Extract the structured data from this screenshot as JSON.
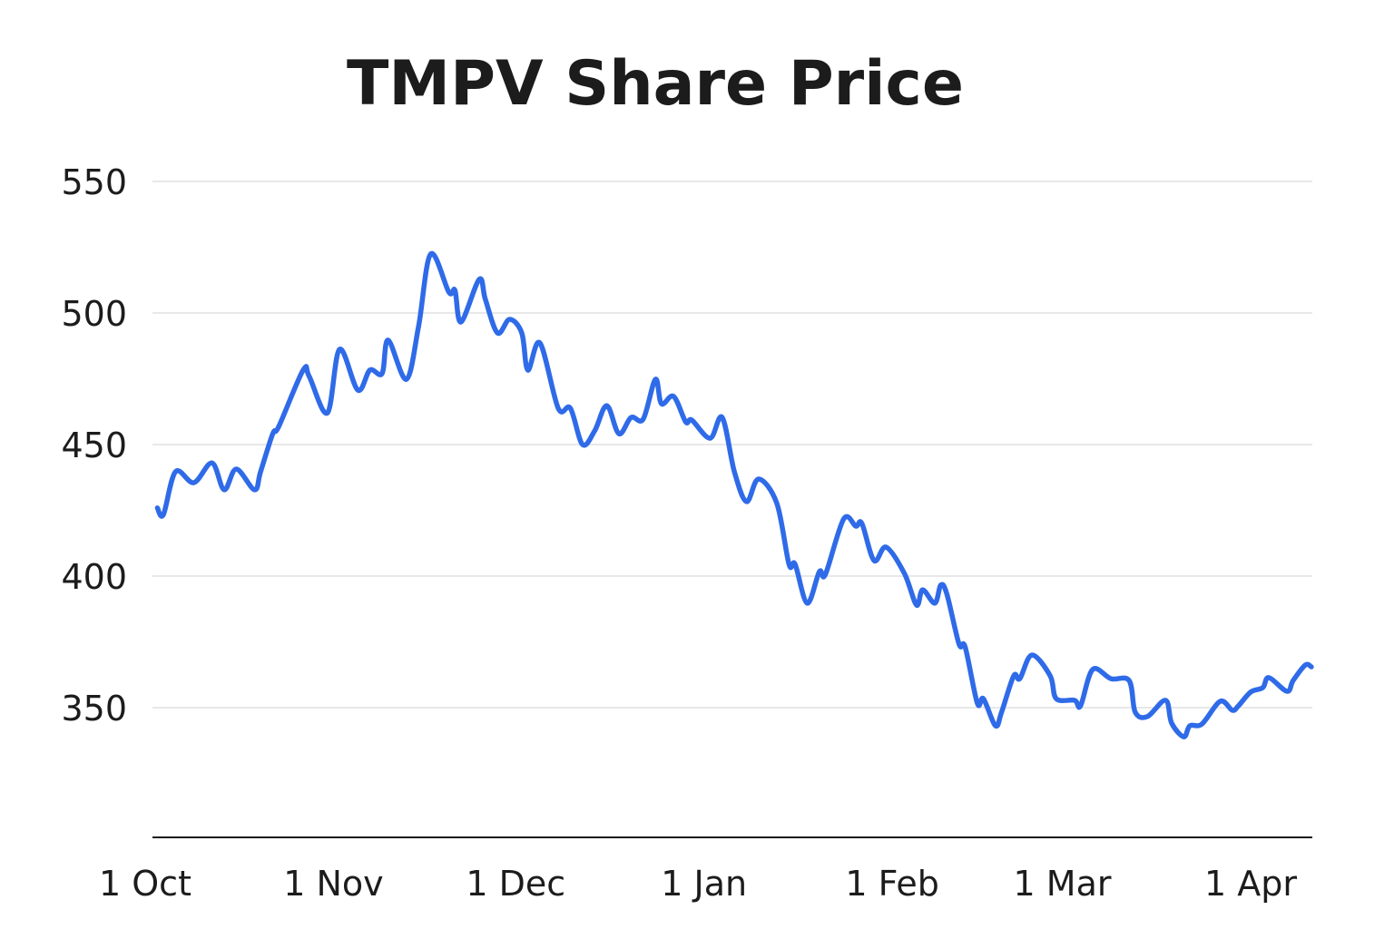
{
  "chart_data": {
    "type": "line",
    "title": "TMPV Share Price",
    "xlabel": "",
    "ylabel": "",
    "ylim": [
      300,
      550
    ],
    "yticks": [
      350,
      400,
      450,
      500,
      550
    ],
    "xticks": [
      "1 Oct",
      "1 Nov",
      "1 Dec",
      "1 Jan",
      "1 Feb",
      "1 Mar",
      "1 Apr"
    ],
    "grid": "horizontal",
    "line_color": "#2f6be8",
    "grid_color": "#e8e8e8",
    "axis_color": "#1c1c1c",
    "series": [
      {
        "x": [
          "3 Oct",
          "4 Oct",
          "6 Oct",
          "9 Oct",
          "12 Oct",
          "14 Oct",
          "16 Oct",
          "19 Oct",
          "20 Oct",
          "22 Oct",
          "23 Oct",
          "27 Oct",
          "28 Oct",
          "31 Oct",
          "2 Nov",
          "5 Nov",
          "7 Nov",
          "9 Nov",
          "10 Nov",
          "13 Nov",
          "15 Nov",
          "17 Nov",
          "20 Nov",
          "21 Nov",
          "22 Nov",
          "25 Nov",
          "26 Nov",
          "28 Nov",
          "30 Nov",
          "2 Dec",
          "3 Dec",
          "5 Dec",
          "8 Dec",
          "10 Dec",
          "12 Dec",
          "14 Dec",
          "16 Dec",
          "18 Dec",
          "20 Dec",
          "22 Dec",
          "24 Dec",
          "25 Dec",
          "27 Dec",
          "29 Dec",
          "30 Dec",
          "2 Jan",
          "4 Jan",
          "6 Jan",
          "8 Jan",
          "10 Jan",
          "13 Jan",
          "15 Jan",
          "16 Jan",
          "18 Jan",
          "20 Jan",
          "21 Jan",
          "24 Jan",
          "26 Jan",
          "27 Jan",
          "29 Jan",
          "31 Jan",
          "3 Feb",
          "5 Feb",
          "6 Feb",
          "8 Feb",
          "9 Feb",
          "10 Feb",
          "12 Feb",
          "13 Feb",
          "15 Feb",
          "16 Feb",
          "18 Feb",
          "19 Feb",
          "21 Feb",
          "22 Feb",
          "24 Feb",
          "27 Feb",
          "28 Feb",
          "3 Mar",
          "4 Mar",
          "6 Mar",
          "9 Mar",
          "12 Mar",
          "13 Mar",
          "15 Mar",
          "18 Mar",
          "19 Mar",
          "21 Mar",
          "22 Mar",
          "24 Mar",
          "27 Mar",
          "29 Mar",
          "30 Mar",
          "1 Apr",
          "3 Apr",
          "4 Apr",
          "7 Apr",
          "8 Apr",
          "10 Apr",
          "11 Apr"
        ],
        "values": [
          425.9,
          423.4,
          439.7,
          435.5,
          443.0,
          432.8,
          440.7,
          432.8,
          439.7,
          454.1,
          456.9,
          478.3,
          475.9,
          462.0,
          486.2,
          470.7,
          478.3,
          477.0,
          489.7,
          474.8,
          494.8,
          522.4,
          507.9,
          508.6,
          496.6,
          512.8,
          505.2,
          492.4,
          497.6,
          492.4,
          478.3,
          488.6,
          463.8,
          463.8,
          450.0,
          455.2,
          464.8,
          454.1,
          460.3,
          459.7,
          474.8,
          465.5,
          468.3,
          458.6,
          459.3,
          452.4,
          460.3,
          439.7,
          428.3,
          436.9,
          427.6,
          404.5,
          404.5,
          389.7,
          401.7,
          400.7,
          421.7,
          419.0,
          420.0,
          405.9,
          411.0,
          401.0,
          389.0,
          394.8,
          389.7,
          396.6,
          393.1,
          374.1,
          373.1,
          351.7,
          353.4,
          343.1,
          348.3,
          362.1,
          361.0,
          370.0,
          362.1,
          353.4,
          352.8,
          350.7,
          364.5,
          361.0,
          360.3,
          348.3,
          346.6,
          352.8,
          344.1,
          338.9,
          343.1,
          343.8,
          352.4,
          349.0,
          350.7,
          355.9,
          357.6,
          361.4,
          356.2,
          360.3,
          366.2,
          365.5
        ]
      }
    ]
  }
}
